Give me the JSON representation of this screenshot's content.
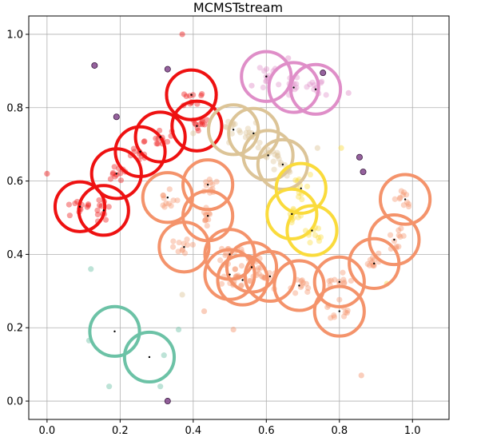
{
  "chart_data": {
    "type": "scatter",
    "title": "MCMSTstream",
    "xlabel": "",
    "ylabel": "",
    "xlim": [
      -0.05,
      1.1
    ],
    "ylim": [
      -0.05,
      1.05
    ],
    "grid": true,
    "x_ticks": [
      0.0,
      0.2,
      0.4,
      0.6,
      0.8,
      1.0
    ],
    "y_ticks": [
      0.0,
      0.2,
      0.4,
      0.6,
      0.8,
      1.0
    ],
    "x_tick_labels": [
      "0.0",
      "0.2",
      "0.4",
      "0.6",
      "0.8",
      "1.0"
    ],
    "y_tick_labels": [
      "0.0",
      "0.2",
      "0.4",
      "0.6",
      "0.8",
      "1.0"
    ],
    "colors": {
      "red": "#ee1111",
      "salmon": "#f4936b",
      "tan": "#dcc497",
      "yellow": "#fadb3c",
      "pink": "#df8ec8",
      "teal": "#6cc2a6",
      "outlier": "#7b3b84"
    },
    "cluster_radius": 0.068,
    "micro_clusters": [
      {
        "x": 0.09,
        "y": 0.53,
        "cluster": "red"
      },
      {
        "x": 0.155,
        "y": 0.52,
        "cluster": "red"
      },
      {
        "x": 0.19,
        "y": 0.62,
        "cluster": "red"
      },
      {
        "x": 0.255,
        "y": 0.68,
        "cluster": "red"
      },
      {
        "x": 0.31,
        "y": 0.72,
        "cluster": "red"
      },
      {
        "x": 0.395,
        "y": 0.835,
        "cluster": "red"
      },
      {
        "x": 0.41,
        "y": 0.75,
        "cluster": "red"
      },
      {
        "x": 0.33,
        "y": 0.555,
        "cluster": "salmon"
      },
      {
        "x": 0.44,
        "y": 0.59,
        "cluster": "salmon"
      },
      {
        "x": 0.44,
        "y": 0.505,
        "cluster": "salmon"
      },
      {
        "x": 0.375,
        "y": 0.42,
        "cluster": "salmon"
      },
      {
        "x": 0.5,
        "y": 0.4,
        "cluster": "salmon"
      },
      {
        "x": 0.5,
        "y": 0.345,
        "cluster": "salmon"
      },
      {
        "x": 0.56,
        "y": 0.365,
        "cluster": "salmon"
      },
      {
        "x": 0.535,
        "y": 0.33,
        "cluster": "salmon"
      },
      {
        "x": 0.61,
        "y": 0.34,
        "cluster": "salmon"
      },
      {
        "x": 0.69,
        "y": 0.315,
        "cluster": "salmon"
      },
      {
        "x": 0.8,
        "y": 0.325,
        "cluster": "salmon"
      },
      {
        "x": 0.8,
        "y": 0.245,
        "cluster": "salmon"
      },
      {
        "x": 0.895,
        "y": 0.375,
        "cluster": "salmon"
      },
      {
        "x": 0.95,
        "y": 0.44,
        "cluster": "salmon"
      },
      {
        "x": 0.98,
        "y": 0.55,
        "cluster": "salmon"
      },
      {
        "x": 0.51,
        "y": 0.74,
        "cluster": "tan"
      },
      {
        "x": 0.565,
        "y": 0.73,
        "cluster": "tan"
      },
      {
        "x": 0.605,
        "y": 0.67,
        "cluster": "tan"
      },
      {
        "x": 0.645,
        "y": 0.645,
        "cluster": "tan"
      },
      {
        "x": 0.695,
        "y": 0.58,
        "cluster": "yellow"
      },
      {
        "x": 0.67,
        "y": 0.51,
        "cluster": "yellow"
      },
      {
        "x": 0.725,
        "y": 0.465,
        "cluster": "yellow"
      },
      {
        "x": 0.6,
        "y": 0.885,
        "cluster": "pink"
      },
      {
        "x": 0.675,
        "y": 0.855,
        "cluster": "pink"
      },
      {
        "x": 0.735,
        "y": 0.85,
        "cluster": "pink"
      },
      {
        "x": 0.185,
        "y": 0.19,
        "cluster": "teal"
      },
      {
        "x": 0.28,
        "y": 0.12,
        "cluster": "teal"
      }
    ],
    "points": [
      {
        "x": 0.13,
        "y": 0.915,
        "cluster": "outlier"
      },
      {
        "x": 0.33,
        "y": 0.905,
        "cluster": "outlier"
      },
      {
        "x": 0.19,
        "y": 0.775,
        "cluster": "outlier"
      },
      {
        "x": 0.755,
        "y": 0.895,
        "cluster": "outlier"
      },
      {
        "x": 0.855,
        "y": 0.665,
        "cluster": "outlier"
      },
      {
        "x": 0.865,
        "y": 0.625,
        "cluster": "outlier"
      },
      {
        "x": 0.33,
        "y": 0.0,
        "cluster": "outlier"
      },
      {
        "x": 0.0,
        "y": 0.62,
        "cluster": "red"
      },
      {
        "x": 0.37,
        "y": 1.0,
        "cluster": "red"
      },
      {
        "x": 0.12,
        "y": 0.36,
        "cluster": "teal"
      },
      {
        "x": 0.17,
        "y": 0.04,
        "cluster": "teal"
      },
      {
        "x": 0.36,
        "y": 0.195,
        "cluster": "teal"
      },
      {
        "x": 0.32,
        "y": 0.125,
        "cluster": "teal"
      },
      {
        "x": 0.31,
        "y": 0.04,
        "cluster": "teal"
      },
      {
        "x": 0.115,
        "y": 0.165,
        "cluster": "teal"
      },
      {
        "x": 0.86,
        "y": 0.07,
        "cluster": "salmon"
      },
      {
        "x": 0.43,
        "y": 0.245,
        "cluster": "salmon"
      },
      {
        "x": 0.51,
        "y": 0.195,
        "cluster": "salmon"
      },
      {
        "x": 0.93,
        "y": 0.32,
        "cluster": "yellow"
      },
      {
        "x": 0.805,
        "y": 0.69,
        "cluster": "yellow"
      },
      {
        "x": 0.37,
        "y": 0.29,
        "cluster": "tan"
      },
      {
        "x": 0.4,
        "y": 0.73,
        "cluster": "tan"
      },
      {
        "x": 0.74,
        "y": 0.69,
        "cluster": "tan"
      },
      {
        "x": 0.66,
        "y": 0.935,
        "cluster": "pink"
      },
      {
        "x": 0.56,
        "y": 0.86,
        "cluster": "pink"
      },
      {
        "x": 0.825,
        "y": 0.84,
        "cluster": "pink"
      }
    ]
  }
}
